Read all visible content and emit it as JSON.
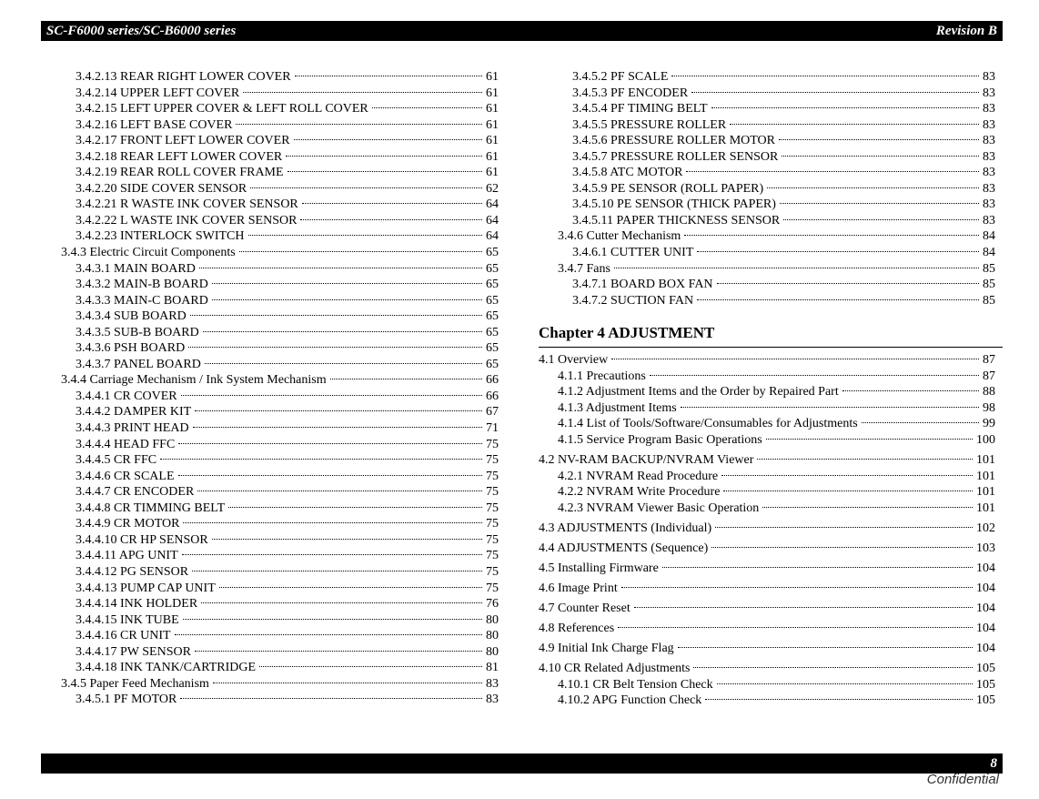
{
  "header": {
    "title": "SC-F6000 series/SC-B6000 series",
    "revision": "Revision B"
  },
  "footer": {
    "page": "8",
    "confidential": "Confidential"
  },
  "left_entries": [
    {
      "level": 4,
      "text": "3.4.2.13 REAR RIGHT LOWER COVER",
      "page": "61"
    },
    {
      "level": 4,
      "text": "3.4.2.14 UPPER LEFT COVER",
      "page": "61"
    },
    {
      "level": 4,
      "text": "3.4.2.15 LEFT UPPER COVER & LEFT ROLL COVER",
      "page": "61"
    },
    {
      "level": 4,
      "text": "3.4.2.16 LEFT BASE COVER",
      "page": "61"
    },
    {
      "level": 4,
      "text": "3.4.2.17 FRONT LEFT LOWER COVER",
      "page": "61"
    },
    {
      "level": 4,
      "text": "3.4.2.18 REAR LEFT LOWER COVER",
      "page": "61"
    },
    {
      "level": 4,
      "text": "3.4.2.19 REAR ROLL COVER FRAME",
      "page": "61"
    },
    {
      "level": 4,
      "text": "3.4.2.20 SIDE COVER SENSOR",
      "page": "62"
    },
    {
      "level": 4,
      "text": "3.4.2.21 R WASTE INK COVER SENSOR",
      "page": "64"
    },
    {
      "level": 4,
      "text": "3.4.2.22 L WASTE INK COVER SENSOR",
      "page": "64"
    },
    {
      "level": 4,
      "text": "3.4.2.23 INTERLOCK SWITCH",
      "page": "64"
    },
    {
      "level": 3,
      "text": "3.4.3 Electric Circuit Components",
      "page": "65"
    },
    {
      "level": 4,
      "text": "3.4.3.1 MAIN BOARD",
      "page": "65"
    },
    {
      "level": 4,
      "text": "3.4.3.2 MAIN-B BOARD",
      "page": "65"
    },
    {
      "level": 4,
      "text": "3.4.3.3 MAIN-C BOARD",
      "page": "65"
    },
    {
      "level": 4,
      "text": "3.4.3.4 SUB BOARD",
      "page": "65"
    },
    {
      "level": 4,
      "text": "3.4.3.5 SUB-B BOARD",
      "page": "65"
    },
    {
      "level": 4,
      "text": "3.4.3.6 PSH BOARD",
      "page": "65"
    },
    {
      "level": 4,
      "text": "3.4.3.7 PANEL BOARD",
      "page": "65"
    },
    {
      "level": 3,
      "text": "3.4.4 Carriage Mechanism / Ink System Mechanism",
      "page": "66"
    },
    {
      "level": 4,
      "text": "3.4.4.1 CR COVER",
      "page": "66"
    },
    {
      "level": 4,
      "text": "3.4.4.2 DAMPER KIT",
      "page": "67"
    },
    {
      "level": 4,
      "text": "3.4.4.3 PRINT HEAD",
      "page": "71"
    },
    {
      "level": 4,
      "text": "3.4.4.4 HEAD FFC",
      "page": "75"
    },
    {
      "level": 4,
      "text": "3.4.4.5 CR FFC",
      "page": "75"
    },
    {
      "level": 4,
      "text": "3.4.4.6 CR SCALE",
      "page": "75"
    },
    {
      "level": 4,
      "text": "3.4.4.7 CR ENCODER",
      "page": "75"
    },
    {
      "level": 4,
      "text": "3.4.4.8 CR TIMMING BELT",
      "page": "75"
    },
    {
      "level": 4,
      "text": "3.4.4.9 CR MOTOR",
      "page": "75"
    },
    {
      "level": 4,
      "text": "3.4.4.10 CR HP SENSOR",
      "page": "75"
    },
    {
      "level": 4,
      "text": "3.4.4.11 APG UNIT",
      "page": "75"
    },
    {
      "level": 4,
      "text": "3.4.4.12 PG SENSOR",
      "page": "75"
    },
    {
      "level": 4,
      "text": "3.4.4.13 PUMP CAP UNIT",
      "page": "75"
    },
    {
      "level": 4,
      "text": "3.4.4.14 INK HOLDER",
      "page": "76"
    },
    {
      "level": 4,
      "text": "3.4.4.15 INK TUBE",
      "page": "80"
    },
    {
      "level": 4,
      "text": "3.4.4.16 CR UNIT",
      "page": "80"
    },
    {
      "level": 4,
      "text": "3.4.4.17 PW SENSOR",
      "page": "80"
    },
    {
      "level": 4,
      "text": "3.4.4.18 INK TANK/CARTRIDGE",
      "page": "81"
    },
    {
      "level": 3,
      "text": "3.4.5 Paper Feed Mechanism",
      "page": "83"
    },
    {
      "level": 4,
      "text": "3.4.5.1 PF MOTOR",
      "page": "83"
    }
  ],
  "right_entries": [
    {
      "level": 4,
      "text": "3.4.5.2 PF SCALE",
      "page": "83"
    },
    {
      "level": 4,
      "text": "3.4.5.3 PF ENCODER",
      "page": "83"
    },
    {
      "level": 4,
      "text": "3.4.5.4 PF TIMING BELT",
      "page": "83"
    },
    {
      "level": 4,
      "text": "3.4.5.5 PRESSURE ROLLER",
      "page": "83"
    },
    {
      "level": 4,
      "text": "3.4.5.6 PRESSURE ROLLER MOTOR",
      "page": "83"
    },
    {
      "level": 4,
      "text": "3.4.5.7 PRESSURE ROLLER SENSOR",
      "page": "83"
    },
    {
      "level": 4,
      "text": "3.4.5.8 ATC MOTOR",
      "page": "83"
    },
    {
      "level": 4,
      "text": "3.4.5.9 PE SENSOR (ROLL PAPER)",
      "page": "83"
    },
    {
      "level": 4,
      "text": "3.4.5.10 PE SENSOR (THICK PAPER)",
      "page": "83"
    },
    {
      "level": 4,
      "text": "3.4.5.11 PAPER THICKNESS SENSOR",
      "page": "83"
    },
    {
      "level": 3,
      "text": "3.4.6 Cutter Mechanism",
      "page": "84"
    },
    {
      "level": 4,
      "text": "3.4.6.1 CUTTER UNIT",
      "page": "84"
    },
    {
      "level": 3,
      "text": "3.4.7 Fans",
      "page": "85"
    },
    {
      "level": 4,
      "text": "3.4.7.1 BOARD BOX FAN",
      "page": "85"
    },
    {
      "level": 4,
      "text": "3.4.7.2 SUCTION FAN",
      "page": "85"
    }
  ],
  "chapter4": {
    "title": "Chapter 4 ADJUSTMENT",
    "entries": [
      {
        "level": 2,
        "text": "4.1 Overview",
        "page": "87"
      },
      {
        "level": 3,
        "text": "4.1.1 Precautions",
        "page": "87"
      },
      {
        "level": 3,
        "text": "4.1.2 Adjustment Items and the Order by Repaired Part",
        "page": "88"
      },
      {
        "level": 3,
        "text": "4.1.3 Adjustment Items",
        "page": "98"
      },
      {
        "level": 3,
        "text": "4.1.4 List of Tools/Software/Consumables for Adjustments",
        "page": "99"
      },
      {
        "level": 3,
        "text": "4.1.5 Service Program Basic Operations",
        "page": "100"
      },
      {
        "level": 2,
        "text": "4.2 NV-RAM BACKUP/NVRAM Viewer",
        "page": "101"
      },
      {
        "level": 3,
        "text": "4.2.1 NVRAM Read Procedure",
        "page": "101"
      },
      {
        "level": 3,
        "text": "4.2.2 NVRAM Write Procedure",
        "page": "101"
      },
      {
        "level": 3,
        "text": "4.2.3 NVRAM Viewer Basic Operation",
        "page": "101"
      },
      {
        "level": 2,
        "text": "4.3 ADJUSTMENTS (Individual)",
        "page": "102"
      },
      {
        "level": 2,
        "text": "4.4 ADJUSTMENTS (Sequence)",
        "page": "103"
      },
      {
        "level": 2,
        "text": "4.5 Installing Firmware",
        "page": "104"
      },
      {
        "level": 2,
        "text": "4.6 Image Print",
        "page": "104"
      },
      {
        "level": 2,
        "text": "4.7 Counter Reset",
        "page": "104"
      },
      {
        "level": 2,
        "text": "4.8 References",
        "page": "104"
      },
      {
        "level": 2,
        "text": "4.9 Initial Ink Charge Flag",
        "page": "104"
      },
      {
        "level": 2,
        "text": "4.10 CR Related Adjustments",
        "page": "105"
      },
      {
        "level": 3,
        "text": "4.10.1 CR Belt Tension Check",
        "page": "105"
      },
      {
        "level": 3,
        "text": "4.10.2 APG Function Check",
        "page": "105"
      }
    ]
  }
}
